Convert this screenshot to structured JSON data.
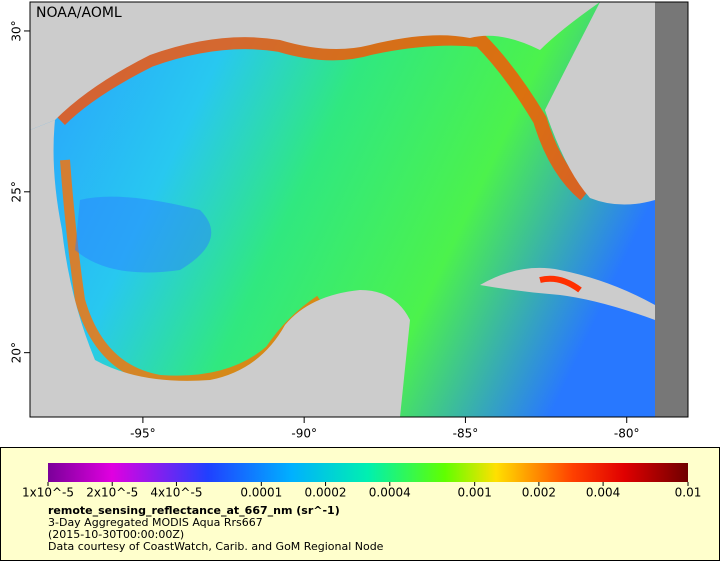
{
  "map": {
    "credit": "NOAA/AOML",
    "xlim": [
      -98.5,
      -78.1
    ],
    "ylim": [
      18.0,
      30.9
    ],
    "xticks": [
      {
        "value": -95,
        "label": "-95°"
      },
      {
        "value": -90,
        "label": "-90°"
      },
      {
        "value": -85,
        "label": "-85°"
      },
      {
        "value": -80,
        "label": "-80°"
      }
    ],
    "yticks": [
      {
        "value": 20,
        "label": "20°"
      },
      {
        "value": 25,
        "label": "25°"
      },
      {
        "value": 30,
        "label": "30°"
      }
    ]
  },
  "legend": {
    "clim": [
      1e-05,
      0.01
    ],
    "scale": "log",
    "ticks": [
      {
        "value": 1e-05,
        "label": "1x10^-5"
      },
      {
        "value": 2e-05,
        "label": "2x10^-5"
      },
      {
        "value": 4e-05,
        "label": "4x10^-5"
      },
      0.0001,
      0.0002,
      0.0004,
      0.001,
      0.002,
      0.004,
      0.01
    ],
    "variable": "remote_sensing_reflectance_at_667_nm (sr^-1)",
    "lines": [
      "3-Day Aggregated MODIS Aqua Rrs667",
      "(2015-10-30T00:00:00Z)",
      "Data courtesy of CoastWatch, Carib. and GoM Regional Node"
    ]
  }
}
